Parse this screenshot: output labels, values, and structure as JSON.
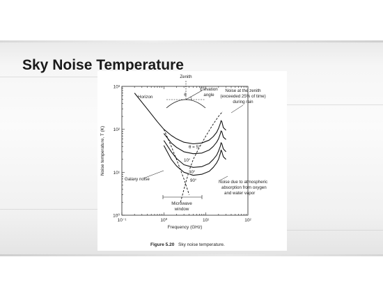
{
  "slide": {
    "title": "Sky Noise Temperature"
  },
  "figure": {
    "caption_label": "Figure 5.20",
    "caption_text": "Sky noise temperature."
  },
  "chart_data": {
    "type": "line",
    "title": "",
    "xlabel": "Frequency (GHz)",
    "ylabel": "Noise temperature, T (K)",
    "x_scale": "log",
    "y_scale": "log",
    "xlim": [
      0.1,
      100
    ],
    "ylim": [
      1,
      1000
    ],
    "grid": false,
    "x_ticks": [
      {
        "value": 0.1,
        "label": "10⁻¹"
      },
      {
        "value": 1,
        "label": "10⁰"
      },
      {
        "value": 10,
        "label": "10¹"
      },
      {
        "value": 100,
        "label": "10²"
      }
    ],
    "y_ticks": [
      {
        "value": 1,
        "label": "10⁰"
      },
      {
        "value": 10,
        "label": "10¹"
      },
      {
        "value": 100,
        "label": "10²"
      },
      {
        "value": 1000,
        "label": "10³"
      }
    ],
    "series": [
      {
        "name": "θ = 5°",
        "x": [
          0.2,
          0.4,
          0.7,
          1.0,
          1.5,
          2,
          3,
          5,
          8,
          12,
          15,
          18,
          20,
          22,
          23,
          24,
          26,
          30
        ],
        "y": [
          700,
          300,
          150,
          100,
          72,
          60,
          50,
          46,
          48,
          56,
          68,
          85,
          105,
          135,
          160,
          150,
          110,
          95
        ]
      },
      {
        "name": "10°",
        "x": [
          1.0,
          1.5,
          2,
          3,
          5,
          8,
          12,
          15,
          18,
          20,
          22,
          23,
          24,
          26,
          30
        ],
        "y": [
          80,
          48,
          38,
          30,
          27,
          28,
          33,
          40,
          50,
          60,
          78,
          92,
          88,
          66,
          58
        ]
      },
      {
        "name": "30°",
        "x": [
          1.0,
          1.5,
          2,
          3,
          5,
          8,
          12,
          15,
          18,
          20,
          22,
          23,
          24,
          26,
          30
        ],
        "y": [
          55,
          30,
          21,
          15,
          13,
          13.5,
          16,
          20,
          25,
          31,
          40,
          49,
          46,
          35,
          30
        ]
      },
      {
        "name": "90°",
        "x": [
          1.0,
          1.5,
          2,
          3,
          5,
          8,
          12,
          15,
          18,
          20,
          22,
          23,
          24,
          26,
          30
        ],
        "y": [
          42,
          20,
          14,
          10,
          8.5,
          9,
          10.5,
          13,
          16.5,
          20,
          27,
          33,
          30,
          23,
          20
        ]
      },
      {
        "name": "Galaxy noise",
        "style": "dashed",
        "x": [
          1.0,
          1.5,
          2,
          3,
          4
        ],
        "y": [
          100,
          40,
          20,
          7,
          3
        ]
      },
      {
        "name": "Noise at the zenith (exceeded 25% of time) during rain",
        "style": "dashed",
        "x": [
          2.5,
          3,
          4,
          5,
          7,
          10,
          14,
          20,
          25
        ],
        "y": [
          2,
          4,
          11,
          20,
          38,
          70,
          120,
          200,
          260
        ]
      }
    ],
    "annotations": [
      {
        "text": "Zenith"
      },
      {
        "text": "Elevation"
      },
      {
        "text": "angle"
      },
      {
        "text": "θ"
      },
      {
        "text": "Horizon"
      },
      {
        "text": "Noise at the zenith"
      },
      {
        "text": "(exceeded 25% of time)"
      },
      {
        "text": "during rain"
      },
      {
        "text": "Galaxy noise"
      },
      {
        "text": "Noise due to atmospheric"
      },
      {
        "text": "absorption from oxygen"
      },
      {
        "text": "and water vapor"
      },
      {
        "text": "Microwave"
      },
      {
        "text": "window"
      }
    ],
    "curve_labels": [
      "θ = 5°",
      "10°",
      "30°",
      "90°"
    ]
  }
}
